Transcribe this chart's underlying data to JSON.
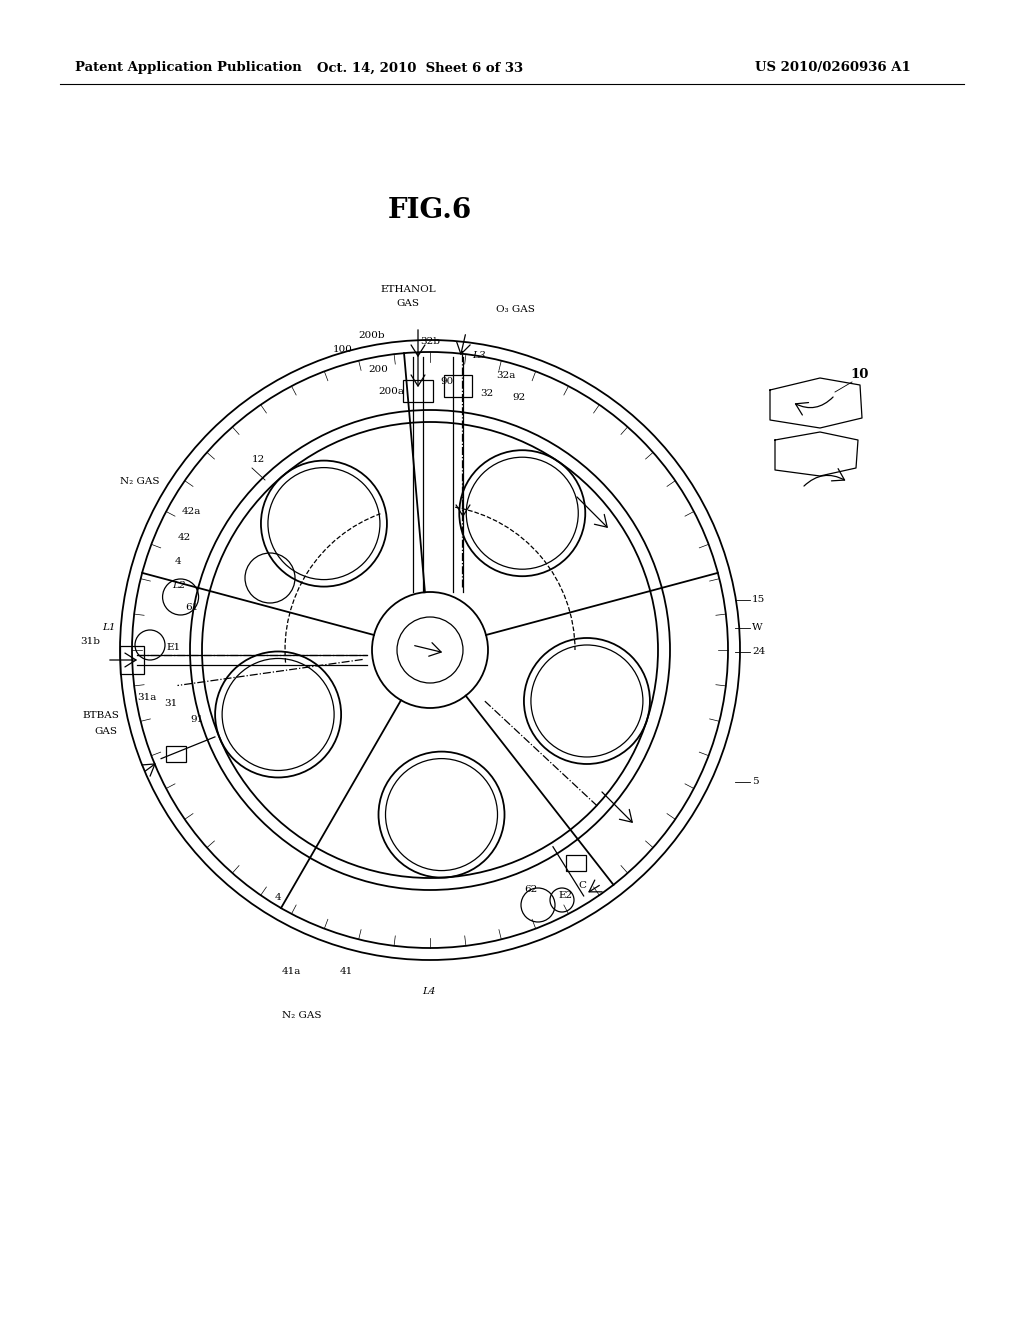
{
  "bg_color": "#ffffff",
  "line_color": "#000000",
  "fig_title": "FIG.6",
  "header_left": "Patent Application Publication",
  "header_mid": "Oct. 14, 2010  Sheet 6 of 33",
  "header_right": "US 2010/0260936 A1"
}
